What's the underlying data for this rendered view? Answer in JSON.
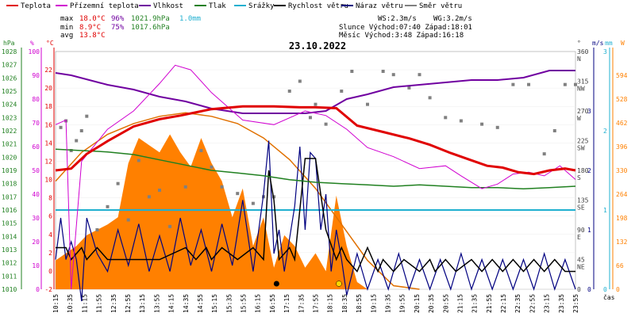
{
  "title": "23.10.2022",
  "legend": [
    {
      "label": "Teplota",
      "color": "#e00000"
    },
    {
      "label": "Přízemní teplota",
      "color": "#d000d0"
    },
    {
      "label": "Vlhkost",
      "color": "#7000a0"
    },
    {
      "label": "Tlak",
      "color": "#208020"
    },
    {
      "label": "Srážky",
      "color": "#20b0d0"
    },
    {
      "label": "Rychlost větru",
      "color": "#000000"
    },
    {
      "label": "Náraz větru",
      "color": "#000080"
    },
    {
      "label": "Směr větru",
      "color": "#808080"
    }
  ],
  "stats": {
    "max_label": "max",
    "max_temp": "18.0°C",
    "max_hum": "96%",
    "max_press": "1021.9hPa",
    "max_rain": "1.0mm",
    "min_label": "min",
    "min_temp": "8.9°C",
    "min_hum": "75%",
    "min_press": "1017.6hPa",
    "avg_label": "avg",
    "avg_temp": "13.8°C",
    "ws": "WS:2.3m/s",
    "wg": "WG:3.2m/s",
    "sun": "Slunce Východ:07:40  Západ:18:01",
    "moon": "Měsíc  Východ:3:48   Západ:16:18"
  },
  "axis_titles": {
    "hpa": "hPa",
    "pct": "%",
    "degc": "°C",
    "deg": "°",
    "ms": "m/s",
    "mm": "mm",
    "wm2": "W"
  },
  "x_label": "čas",
  "colors": {
    "temp": "#e00000",
    "ground": "#d000d0",
    "humidity": "#7000a0",
    "pressure": "#208020",
    "rain": "#20b0d0",
    "wind": "#000000",
    "gust": "#000080",
    "winddir": "#808080",
    "solar_fill": "#ff8000",
    "solar_line": "#e07000"
  },
  "chart_data": {
    "type": "line",
    "x_categories": [
      "10:15",
      "10:35",
      "11:15",
      "11:55",
      "12:35",
      "12:55",
      "13:15",
      "13:55",
      "14:15",
      "14:35",
      "14:55",
      "15:15",
      "15:35",
      "15:55",
      "16:15",
      "16:55",
      "17:15",
      "17:35",
      "17:55",
      "18:15",
      "18:35",
      "18:55",
      "19:15",
      "19:35",
      "19:55",
      "20:15",
      "20:35",
      "20:55",
      "21:15",
      "21:35",
      "21:55",
      "22:15",
      "22:35",
      "22:55",
      "23:15",
      "23:35",
      "23:55"
    ],
    "axes": {
      "pressure_hpa": {
        "min": 1010,
        "max": 1028,
        "ticks": [
          "1028",
          "1027",
          "1026",
          "1025",
          "1024",
          "1023",
          "1022",
          "1021",
          "1020",
          "1019",
          "1018",
          "1017",
          "1016",
          "1015",
          "1014",
          "1013",
          "1012",
          "1011",
          "1010"
        ]
      },
      "humidity_pct": {
        "min": 0,
        "max": 100,
        "ticks": [
          "100",
          "90",
          "80",
          "70",
          "60",
          "50",
          "40",
          "30",
          "20",
          "10",
          "0"
        ]
      },
      "temperature_c": {
        "min": -2,
        "max": 24,
        "ticks": [
          "22",
          "20",
          "18",
          "16",
          "14",
          "12",
          "10",
          "8",
          "6",
          "4",
          "2",
          "0",
          "-2"
        ]
      },
      "wind_dir_deg": {
        "min": 0,
        "max": 360,
        "ticks": [
          "360 N",
          "315 NW",
          "270 W",
          "225 SW",
          "180 S",
          "135 SE",
          "90 E",
          "45 NE",
          "0"
        ]
      },
      "wind_ms": {
        "min": 0,
        "max": 4,
        "ticks": [
          "3",
          "2",
          "1",
          "0"
        ]
      },
      "rain_mm": {
        "min": 0,
        "max": 3,
        "ticks": [
          "3",
          "2",
          "1",
          "0"
        ]
      },
      "solar_wm2": {
        "min": 0,
        "max": 660,
        "ticks": [
          "594",
          "528",
          "462",
          "396",
          "330",
          "264",
          "198",
          "132",
          "66",
          "0"
        ]
      }
    },
    "series": [
      {
        "name": "Teplota",
        "unit": "°C",
        "t": [
          0,
          0.03,
          0.06,
          0.1,
          0.15,
          0.2,
          0.24,
          0.3,
          0.36,
          0.42,
          0.47,
          0.5,
          0.54,
          0.58,
          0.63,
          0.68,
          0.72,
          0.76,
          0.8,
          0.83,
          0.86,
          0.89,
          0.92,
          0.95,
          0.98,
          1.0
        ],
        "values": [
          11,
          11.2,
          12.8,
          14.2,
          15.8,
          16.6,
          17.0,
          17.7,
          18.0,
          18.0,
          17.9,
          17.9,
          17.8,
          15.9,
          15.2,
          14.5,
          13.8,
          12.9,
          12.1,
          11.5,
          11.3,
          10.8,
          10.6,
          11.0,
          11.2,
          11.0
        ]
      },
      {
        "name": "Přízemní teplota",
        "unit": "°C",
        "t": [
          0,
          0.02,
          0.03,
          0.05,
          0.1,
          0.15,
          0.2,
          0.23,
          0.26,
          0.3,
          0.36,
          0.42,
          0.48,
          0.52,
          0.56,
          0.6,
          0.65,
          0.7,
          0.75,
          0.78,
          0.82,
          0.85,
          0.88,
          0.91,
          0.94,
          0.97,
          1.0
        ],
        "values": [
          16,
          16.5,
          -2,
          12,
          15.5,
          17.5,
          20.5,
          22.5,
          22.0,
          19.5,
          16.5,
          16.0,
          17.5,
          17.0,
          15.5,
          13.5,
          12.5,
          11.2,
          11.5,
          10.4,
          9.0,
          9.5,
          10.6,
          10.8,
          10.4,
          11.5,
          10.0
        ]
      },
      {
        "name": "Vlhkost",
        "unit": "%",
        "t": [
          0,
          0.03,
          0.1,
          0.15,
          0.2,
          0.25,
          0.3,
          0.36,
          0.42,
          0.48,
          0.52,
          0.56,
          0.6,
          0.65,
          0.7,
          0.75,
          0.8,
          0.85,
          0.9,
          0.95,
          1.0
        ],
        "values": [
          91,
          90,
          86,
          84,
          81,
          79,
          76,
          74,
          74,
          74,
          75,
          80,
          82,
          85,
          86,
          87,
          88,
          88,
          89,
          92,
          92
        ]
      },
      {
        "name": "Tlak",
        "unit": "hPa",
        "t": [
          0,
          0.05,
          0.1,
          0.15,
          0.2,
          0.25,
          0.3,
          0.35,
          0.4,
          0.45,
          0.5,
          0.55,
          0.6,
          0.65,
          0.7,
          0.75,
          0.8,
          0.85,
          0.9,
          0.95,
          1.0
        ],
        "values": [
          1020.6,
          1020.5,
          1020.4,
          1020.2,
          1019.8,
          1019.4,
          1019.0,
          1018.8,
          1018.6,
          1018.3,
          1018.1,
          1018.0,
          1017.9,
          1017.8,
          1017.9,
          1017.8,
          1017.7,
          1017.7,
          1017.6,
          1017.7,
          1017.8
        ]
      },
      {
        "name": "Srážky",
        "unit": "mm",
        "t": [
          0,
          1
        ],
        "values": [
          1.0,
          1.0
        ]
      },
      {
        "name": "Rychlost větru",
        "unit": "m/s",
        "t": [
          0,
          0.02,
          0.03,
          0.05,
          0.06,
          0.08,
          0.1,
          0.2,
          0.25,
          0.27,
          0.29,
          0.3,
          0.32,
          0.35,
          0.38,
          0.4,
          0.41,
          0.42,
          0.43,
          0.45,
          0.46,
          0.48,
          0.5,
          0.52,
          0.54,
          0.55,
          0.56,
          0.58,
          0.6,
          0.62,
          0.63,
          0.65,
          0.67,
          0.7,
          0.72,
          0.73,
          0.75,
          0.77,
          0.8,
          0.82,
          0.84,
          0.86,
          0.88,
          0.9,
          0.92,
          0.94,
          0.96,
          0.98,
          1.0
        ],
        "values": [
          0.7,
          0.7,
          0.5,
          0.7,
          0.5,
          0.7,
          0.5,
          0.5,
          0.7,
          0.5,
          0.7,
          0.5,
          0.7,
          0.5,
          0.7,
          0.5,
          2.0,
          1.5,
          0.5,
          0.7,
          0.5,
          2.2,
          2.2,
          1.0,
          0.5,
          0.7,
          0.5,
          0.3,
          0.7,
          0.3,
          0.5,
          0.3,
          0.5,
          0.3,
          0.5,
          0.3,
          0.5,
          0.3,
          0.5,
          0.3,
          0.5,
          0.3,
          0.5,
          0.3,
          0.5,
          0.3,
          0.5,
          0.3,
          0.3
        ]
      },
      {
        "name": "Náraz větru",
        "unit": "m/s",
        "t": [
          0,
          0.01,
          0.02,
          0.03,
          0.04,
          0.05,
          0.06,
          0.08,
          0.1,
          0.12,
          0.14,
          0.16,
          0.18,
          0.2,
          0.22,
          0.24,
          0.26,
          0.28,
          0.3,
          0.32,
          0.34,
          0.36,
          0.38,
          0.4,
          0.41,
          0.42,
          0.43,
          0.44,
          0.46,
          0.47,
          0.48,
          0.49,
          0.5,
          0.51,
          0.52,
          0.53,
          0.54,
          0.55,
          0.56,
          0.58,
          0.6,
          0.62,
          0.64,
          0.66,
          0.68,
          0.7,
          0.72,
          0.74,
          0.76,
          0.78,
          0.8,
          0.82,
          0.84,
          0.86,
          0.88,
          0.9,
          0.92,
          0.94,
          0.96,
          0.98,
          1.0
        ],
        "values": [
          0.5,
          1.2,
          0.5,
          0.8,
          0.5,
          -0.2,
          1.2,
          0.6,
          0.3,
          1.0,
          0.4,
          1.1,
          0.3,
          0.9,
          0.3,
          1.2,
          0.4,
          1.0,
          0.3,
          1.1,
          0.4,
          1.5,
          0.3,
          1.6,
          2.5,
          0.6,
          1.0,
          0.3,
          1.4,
          2.4,
          1.0,
          2.3,
          2.2,
          1.0,
          1.6,
          0.3,
          1.0,
          0.5,
          -0.1,
          0.6,
          0.0,
          0.5,
          0.0,
          0.6,
          0.0,
          0.5,
          0.0,
          0.5,
          0.0,
          0.6,
          0.0,
          0.5,
          0.0,
          0.5,
          0.0,
          0.5,
          0.0,
          0.6,
          0.0,
          0.5,
          0.0
        ]
      },
      {
        "name": "Směr větru",
        "unit": "°",
        "t": [
          0.01,
          0.02,
          0.03,
          0.04,
          0.05,
          0.06,
          0.08,
          0.1,
          0.12,
          0.14,
          0.16,
          0.18,
          0.2,
          0.22,
          0.25,
          0.28,
          0.3,
          0.32,
          0.35,
          0.38,
          0.4,
          0.42,
          0.45,
          0.47,
          0.49,
          0.5,
          0.52,
          0.55,
          0.57,
          0.6,
          0.63,
          0.65,
          0.68,
          0.7,
          0.72,
          0.75,
          0.78,
          0.82,
          0.85,
          0.88,
          0.91,
          0.94,
          0.96,
          0.98,
          1.0
        ],
        "values": [
          245,
          255,
          210,
          225,
          240,
          262,
          90,
          125,
          160,
          105,
          195,
          140,
          150,
          95,
          155,
          210,
          185,
          155,
          145,
          130,
          140,
          140,
          300,
          315,
          260,
          280,
          250,
          300,
          330,
          280,
          330,
          325,
          305,
          325,
          290,
          260,
          255,
          250,
          245,
          310,
          310,
          205,
          240,
          310,
          310
        ]
      },
      {
        "name": "Solar",
        "unit": "W/m²",
        "t": [
          0,
          0.04,
          0.06,
          0.1,
          0.12,
          0.14,
          0.16,
          0.18,
          0.2,
          0.22,
          0.24,
          0.26,
          0.28,
          0.3,
          0.32,
          0.34,
          0.36,
          0.38,
          0.4,
          0.42,
          0.44,
          0.46,
          0.48,
          0.5,
          0.52,
          0.54,
          0.56,
          0.58,
          0.6
        ],
        "values": [
          80,
          120,
          150,
          180,
          200,
          350,
          420,
          400,
          380,
          430,
          380,
          340,
          420,
          350,
          300,
          200,
          280,
          120,
          200,
          60,
          150,
          120,
          60,
          100,
          50,
          260,
          120,
          20,
          0
        ]
      },
      {
        "name": "Solar theoretical",
        "unit": "W/m²",
        "t": [
          0,
          0.05,
          0.1,
          0.15,
          0.2,
          0.25,
          0.3,
          0.35,
          0.4,
          0.45,
          0.5,
          0.55,
          0.6,
          0.65,
          0.7
        ],
        "values": [
          300,
          380,
          430,
          460,
          480,
          490,
          480,
          460,
          420,
          360,
          280,
          180,
          80,
          10,
          0
        ]
      }
    ]
  }
}
